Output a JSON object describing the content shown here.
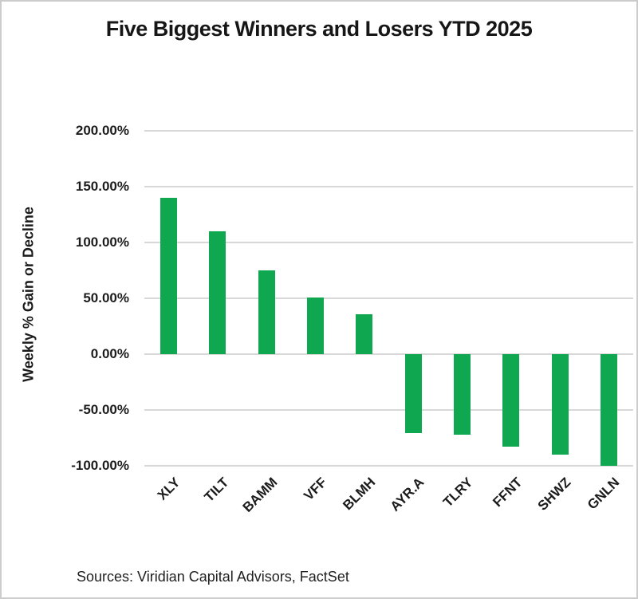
{
  "page": {
    "background": "#ffffff",
    "frame_border_color": "#cccccc",
    "text_color": "#1a1a1a",
    "gridline_color": "#d8d8d8"
  },
  "chart_data": {
    "type": "bar",
    "title": "Five Biggest Winners and Losers YTD 2025",
    "xlabel": "",
    "ylabel": "Weekly % Gain or Decline",
    "source": "Sources: Viridian Capital Advisors, FactSet",
    "categories": [
      "XLY",
      "TILT",
      "BAMM",
      "VFF",
      "BLMH",
      "AYR.A",
      "TLRY",
      "FFNT",
      "SHWZ",
      "GNLN"
    ],
    "values": [
      140,
      110,
      75,
      51,
      36,
      -71,
      -72,
      -83,
      -90,
      -100
    ],
    "value_unit": "%",
    "ylim": [
      -100,
      200
    ],
    "ytick_step": 50,
    "ytick_labels": [
      "200.00%",
      "150.00%",
      "100.00%",
      "50.00%",
      "0.00%",
      "-50.00%",
      "-100.00%"
    ],
    "bar_color": "#0fa750",
    "grid": true,
    "legend_position": "none"
  }
}
